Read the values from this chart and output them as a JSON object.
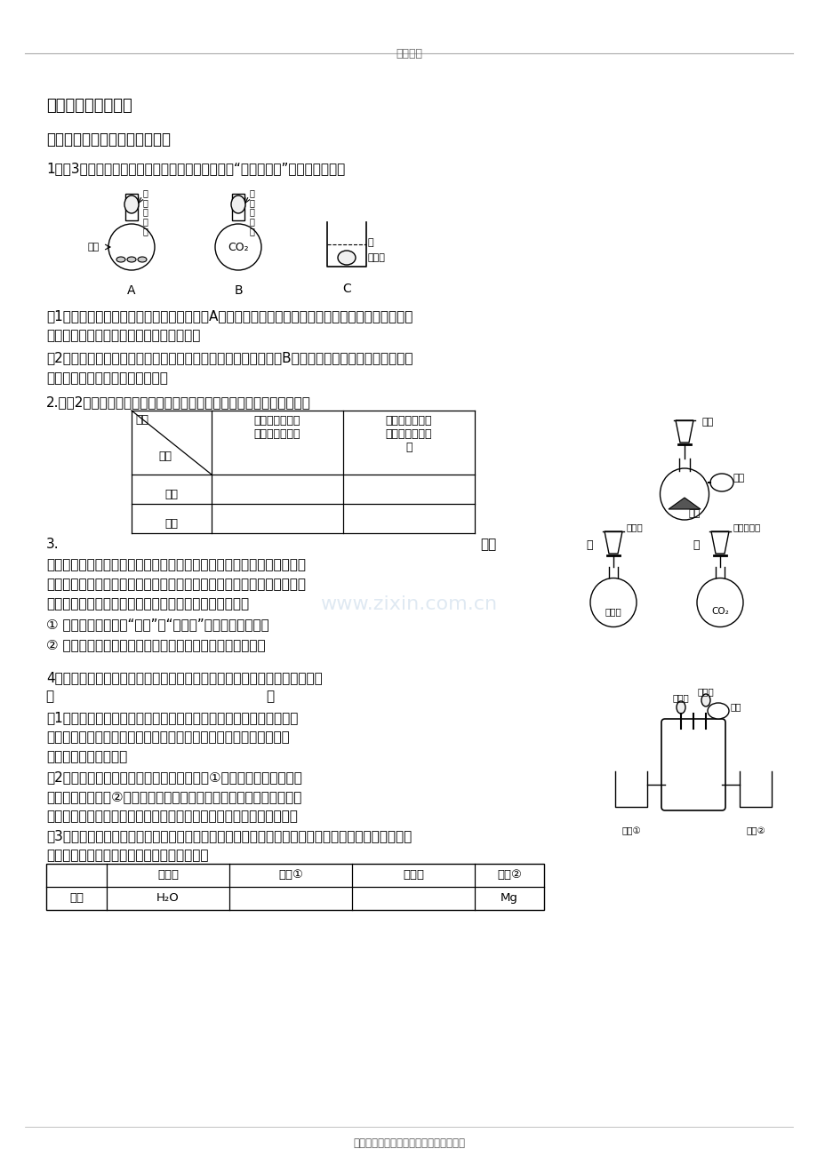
{
  "page_header": "精品文档",
  "page_footer": "收集于网络，如有侵权请联系管理员删除",
  "section_title": "三、压强原理的应用",
  "subsection_title": "【应用一：由现象推压强变化】",
  "q1_text": "1．（3分）在一次科学实践活动课上，同学们做了“会动的鸡蛋”系列趣味实验。",
  "q1_1": "（1）向装有干冰的集气瓶中加入热水（如图A），观察到有大量白雾产生，熟鸡蛋在瓶口跳动，该实",
  "q1_1b": "验说明干冰具有＿＿＿＿＿＿＿＿的性质。",
  "q1_2": "（2）向集满二氧化碳气体的瓶中加入饱和的氮氧化鑃溶液（如图B），观察到瓶口的熟鸡蛋被吞入瓶",
  "q1_2b": "中，其原因是＿＿＿＿＿＿＿＿。",
  "q2_text": "2.任选2种为一组，按下图装置进行实验，将液体滴入瓶中，关闭活塞。",
  "table_col1": "气球变鼓，一段\n时间后恢复原状",
  "table_col2": "气球叔，一段\n时间后不恢复原\n状",
  "table_row1": "现象\n物质",
  "table_row2": "液体",
  "table_row3": "固体",
  "q3_intro": "3.",
  "q3_right": "如右",
  "q3_text1": "图所示的甲、乙两个装置（气密性良好），从分液漏斗中加入液体，一段",
  "q3_text2": "时间后两装置中的气球都胀大（忽略液体体积对气球体积的影响）。精确",
  "q3_text3": "称量发现：两个实验反应后质量均与反应前数值不相等。",
  "q3_1": "① 两个反应＿＿（填“遵守”或“不遵守”）质量守恒定律。",
  "q3_2": "② 请分别解释两个装置中气球胀大的原因＿＿＿＿＿＿＿。",
  "q4_text": "4．下图装置可以完成多个简单实验，具有药品用量少、尾气不外逸等优点。",
  "q4_jia_yi": "甲                                                 乙",
  "q4_1a": "（1）若甲中吸有浓氨水，乙中吸有无色酚酮溶液，将甲、乙中的液体",
  "q4_1b": "挤出，一段时间后，观察到无色酚酮溶液变红，说明分子具有的性质",
  "q4_1c": "是＿＿＿＿＿＿＿＿。",
  "q4_2a": "（2）若甲中吸有水，乙中吸有稀硫酸，烧杯①中盛有用石蕊溶液染成",
  "q4_2b": "的干燥纸花，烧杯②中盛有碳酸馒粉末。为了验证使石蕊变色的物质是",
  "q4_2c": "而不是二氧化碳，应采取的实验操作是＿＿＿＿＿＿＿＿＿＿＿＿＿＿",
  "q4_3a": "（3）若先将甲中的液体挤出，观察到气球明显鼓起；一段时间后恢复原状；再将乙中的液体挤出，气",
  "q4_3b": "球又明显鼓起。请将下表中的试剂补充完整。",
  "reagent_headers": [
    "滴管甲",
    "烧杯①",
    "滴管乙",
    "烧杯②"
  ],
  "reagent_label": "试剂",
  "reagent_values": [
    "H₂O",
    "",
    "",
    "Mg"
  ],
  "background_color": "#ffffff",
  "text_color": "#000000",
  "watermark_text": "www.zixin.com.cn",
  "watermark_color": "#b0c8e0",
  "q3_app_left_label1": "稀盐酸",
  "q3_app_left_label2": "碳酸馒",
  "q3_app_right_label1": "澄清石灰水",
  "q3_app_right_label2": "CO₂"
}
